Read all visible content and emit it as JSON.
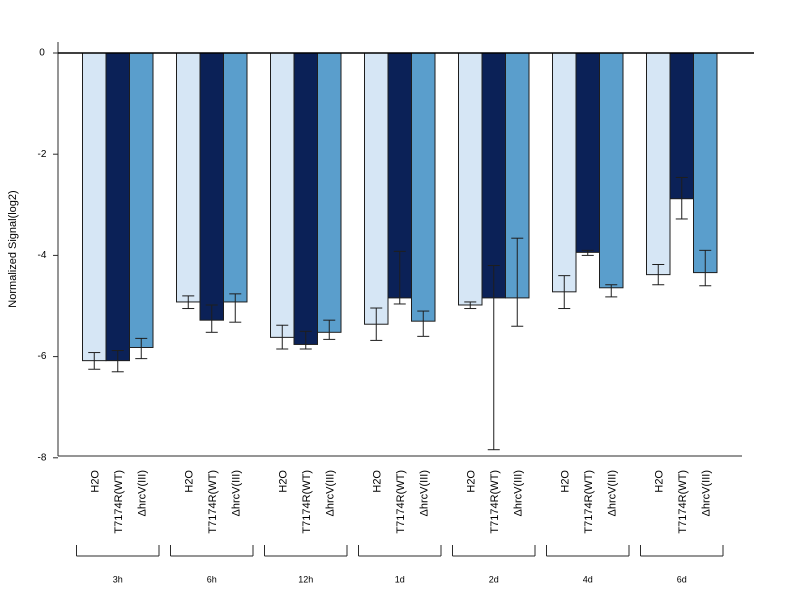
{
  "chart_data": {
    "type": "bar",
    "ylabel": "Normalized Signal(log2)",
    "ylim": [
      -8,
      0
    ],
    "yticks": [
      0,
      -2,
      -4,
      -6,
      -8
    ],
    "ytick_labels": [
      "0",
      "-2",
      "-4",
      "-6",
      "-8"
    ],
    "bar_labels": [
      "H2O",
      "T7174R(WT)",
      "ΔhrcV(III)"
    ],
    "groups": [
      "3h",
      "6h",
      "12h",
      "1d",
      "2d",
      "4d",
      "6d"
    ],
    "series": [
      {
        "color": "#d6e6f5",
        "values": [
          -6.08,
          -4.92,
          -5.62,
          -5.36,
          -4.98,
          -4.72,
          -4.38
        ],
        "err_lower": [
          -6.25,
          -5.05,
          -5.85,
          -5.68,
          -5.05,
          -5.05,
          -4.58
        ],
        "err_upper": [
          -5.92,
          -4.8,
          -5.38,
          -5.04,
          -4.92,
          -4.4,
          -4.18
        ]
      },
      {
        "color": "#0b2157",
        "values": [
          -6.08,
          -5.28,
          -5.76,
          -4.84,
          -4.84,
          -3.94,
          -2.88
        ],
        "err_lower": [
          -6.3,
          -5.52,
          -5.85,
          -4.96,
          -7.84,
          -4.0,
          -3.28
        ],
        "err_upper": [
          -5.88,
          -4.98,
          -5.5,
          -3.92,
          -4.2,
          -3.9,
          -2.46
        ]
      },
      {
        "color": "#5a9ecc",
        "values": [
          -5.82,
          -4.92,
          -5.52,
          -5.3,
          -4.84,
          -4.64,
          -4.34
        ],
        "err_lower": [
          -6.04,
          -5.32,
          -5.66,
          -5.6,
          -5.4,
          -4.82,
          -4.6
        ],
        "err_upper": [
          -5.64,
          -4.76,
          -5.28,
          -5.1,
          -3.66,
          -4.58,
          -3.9
        ]
      }
    ]
  }
}
